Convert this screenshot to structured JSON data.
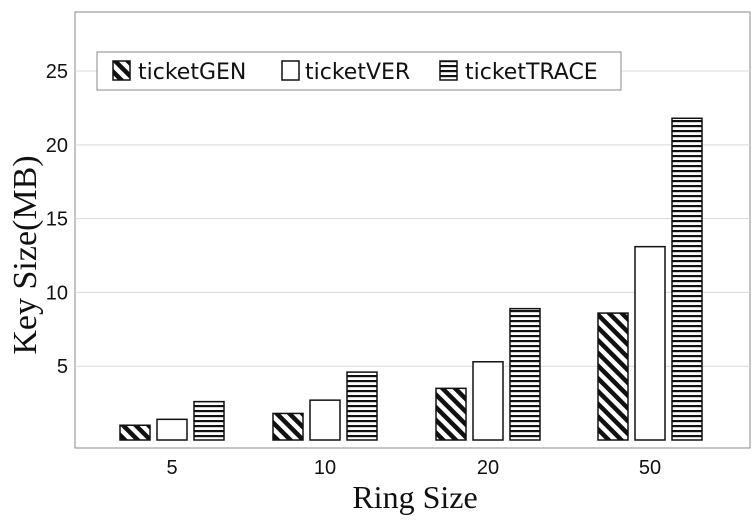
{
  "chart_data": {
    "type": "bar",
    "title": "",
    "xlabel": "Ring Size",
    "ylabel": "Key Size(MB)",
    "categories": [
      "5",
      "10",
      "20",
      "50"
    ],
    "series": [
      {
        "name": "ticketGEN",
        "pattern": "diagonal-hatch",
        "values": [
          1.0,
          1.8,
          3.5,
          8.6
        ]
      },
      {
        "name": "ticketVER",
        "pattern": "blank",
        "values": [
          1.4,
          2.7,
          5.3,
          13.1
        ]
      },
      {
        "name": "ticketTRACE",
        "pattern": "horizontal-lines",
        "values": [
          2.6,
          4.6,
          8.9,
          21.8
        ]
      }
    ],
    "ylim": [
      0,
      29
    ],
    "yticks": [
      5,
      10,
      15,
      20,
      25
    ],
    "grid": true,
    "legend_position": "top"
  },
  "colors": {
    "bar_stroke": "#111111",
    "grid": "#d9d9d9",
    "frame": "#888888"
  }
}
